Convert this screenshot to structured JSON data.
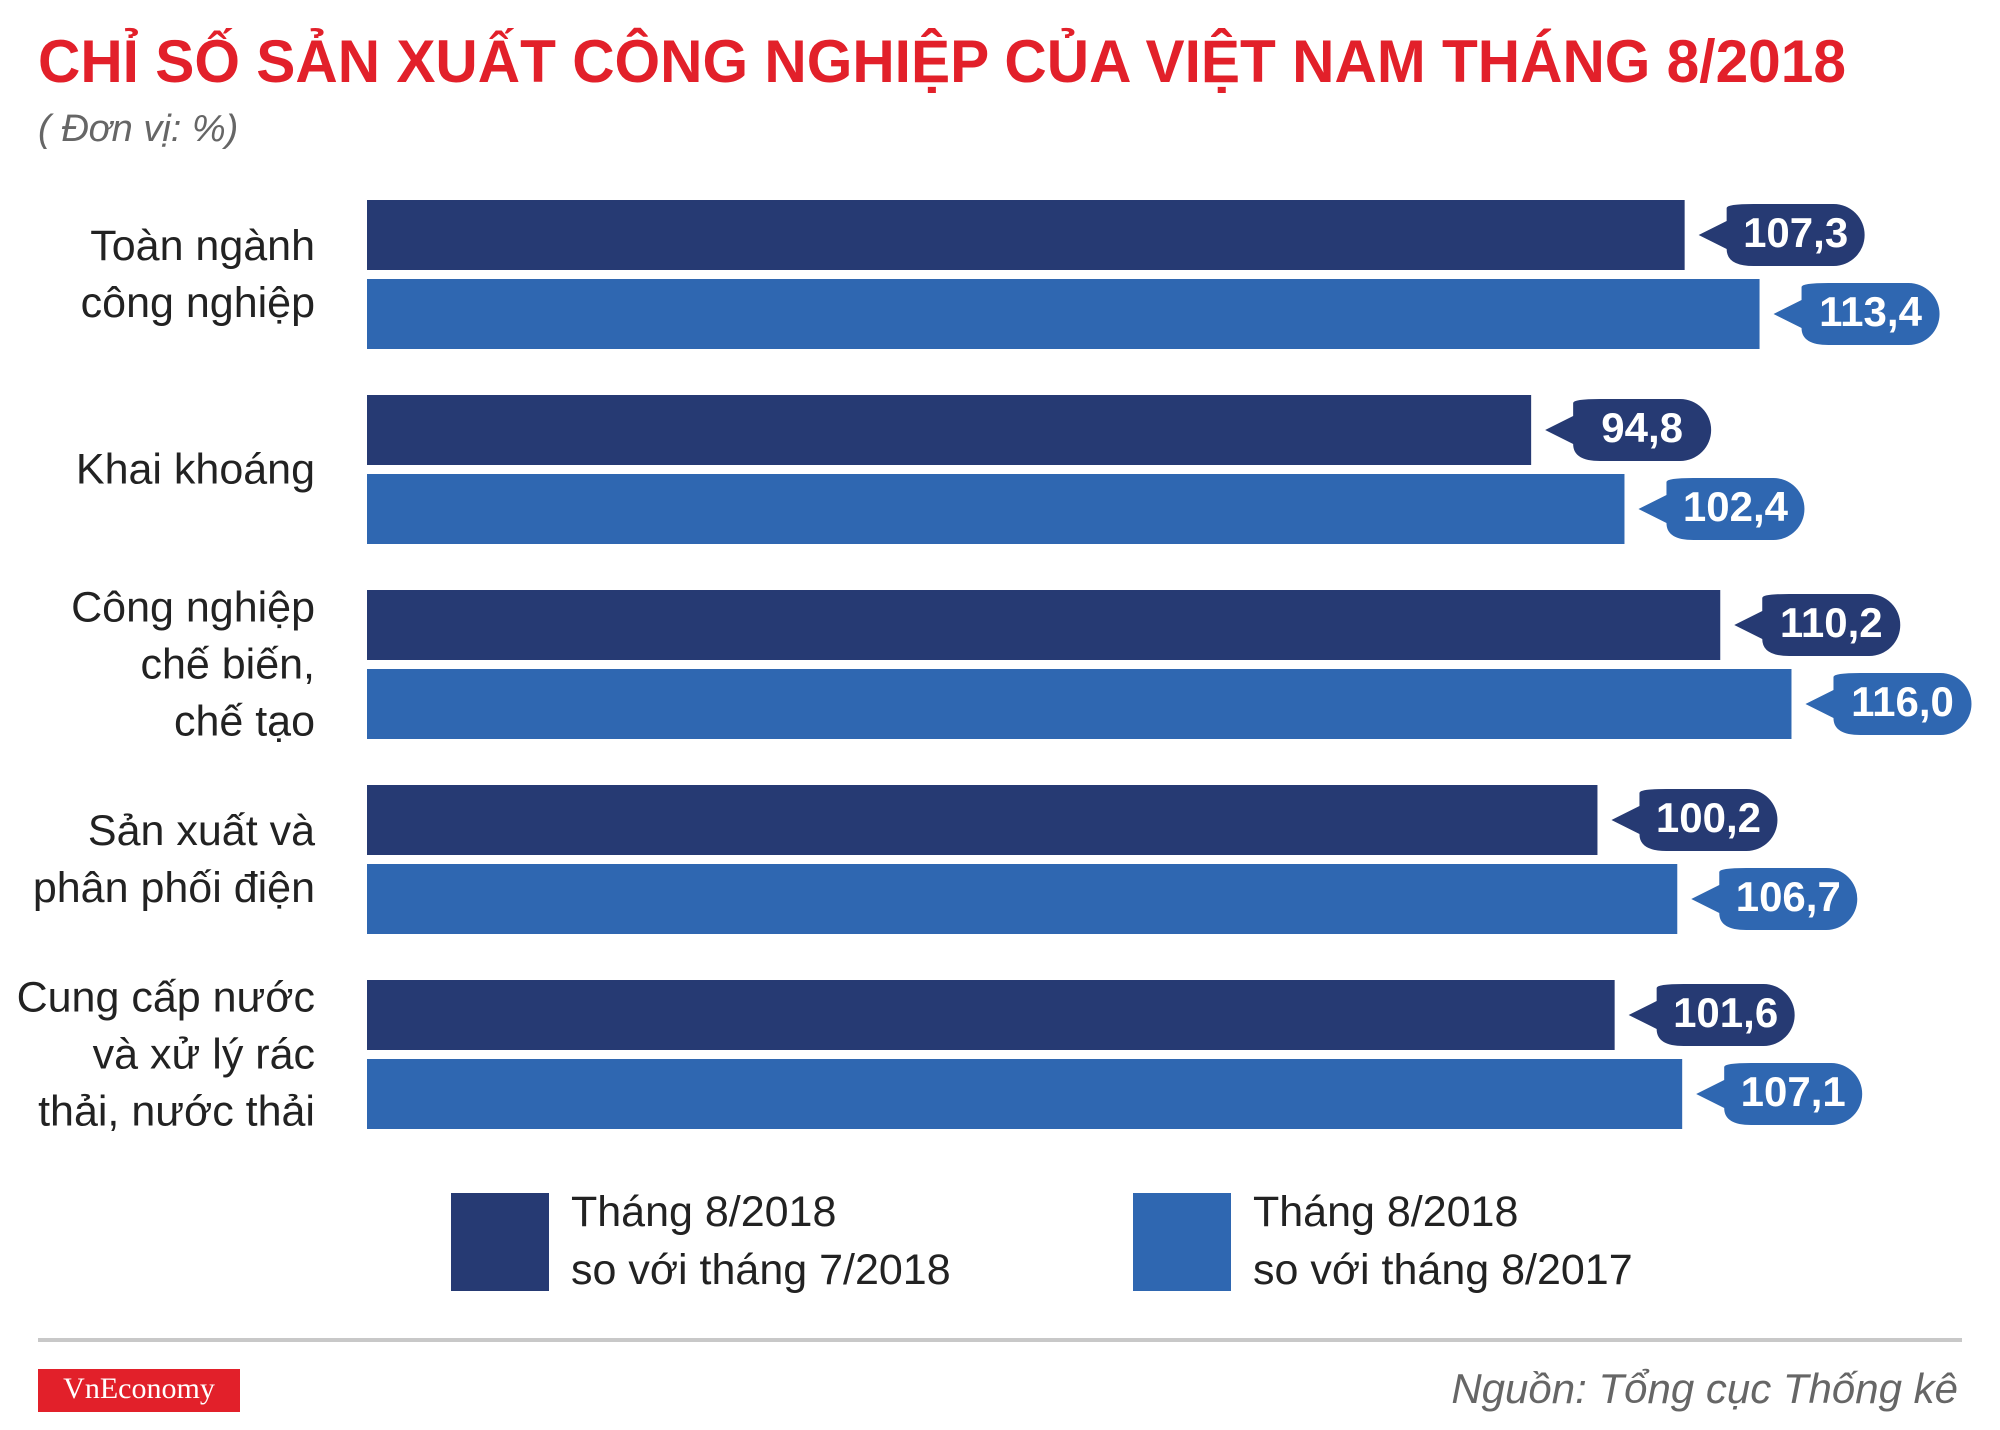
{
  "chart_data": {
    "type": "bar",
    "orientation": "horizontal",
    "title": "CHỈ SỐ SẢN XUẤT CÔNG NGHIỆP CỦA VIỆT NAM THÁNG 8/2018",
    "subtitle": "( Đơn vị: %)",
    "categories": [
      "Toàn ngành\ncông nghiệp",
      "Khai khoáng",
      "Công nghiệp\nchế biến,\nchế tạo",
      "Sản xuất và\nphân phối điện",
      "Cung cấp nước\nvà xử lý rác\nthải, nước thải"
    ],
    "series": [
      {
        "name": "Tháng 8/2018\nso với tháng 7/2018",
        "color": "#263a73",
        "values": [
          107.3,
          94.8,
          110.2,
          100.2,
          101.6
        ],
        "value_labels": [
          "107,3",
          "94,8",
          "110,2",
          "100,2",
          "101,6"
        ]
      },
      {
        "name": "Tháng 8/2018\nso với tháng 8/2017",
        "color": "#2f67b1",
        "values": [
          113.4,
          102.4,
          116.0,
          106.7,
          107.1
        ],
        "value_labels": [
          "113,4",
          "102,4",
          "116,0",
          "106,7",
          "107,1"
        ]
      }
    ],
    "logo": "VnEconomy",
    "source": "Nguồn: Tổng cục Thống kê"
  }
}
